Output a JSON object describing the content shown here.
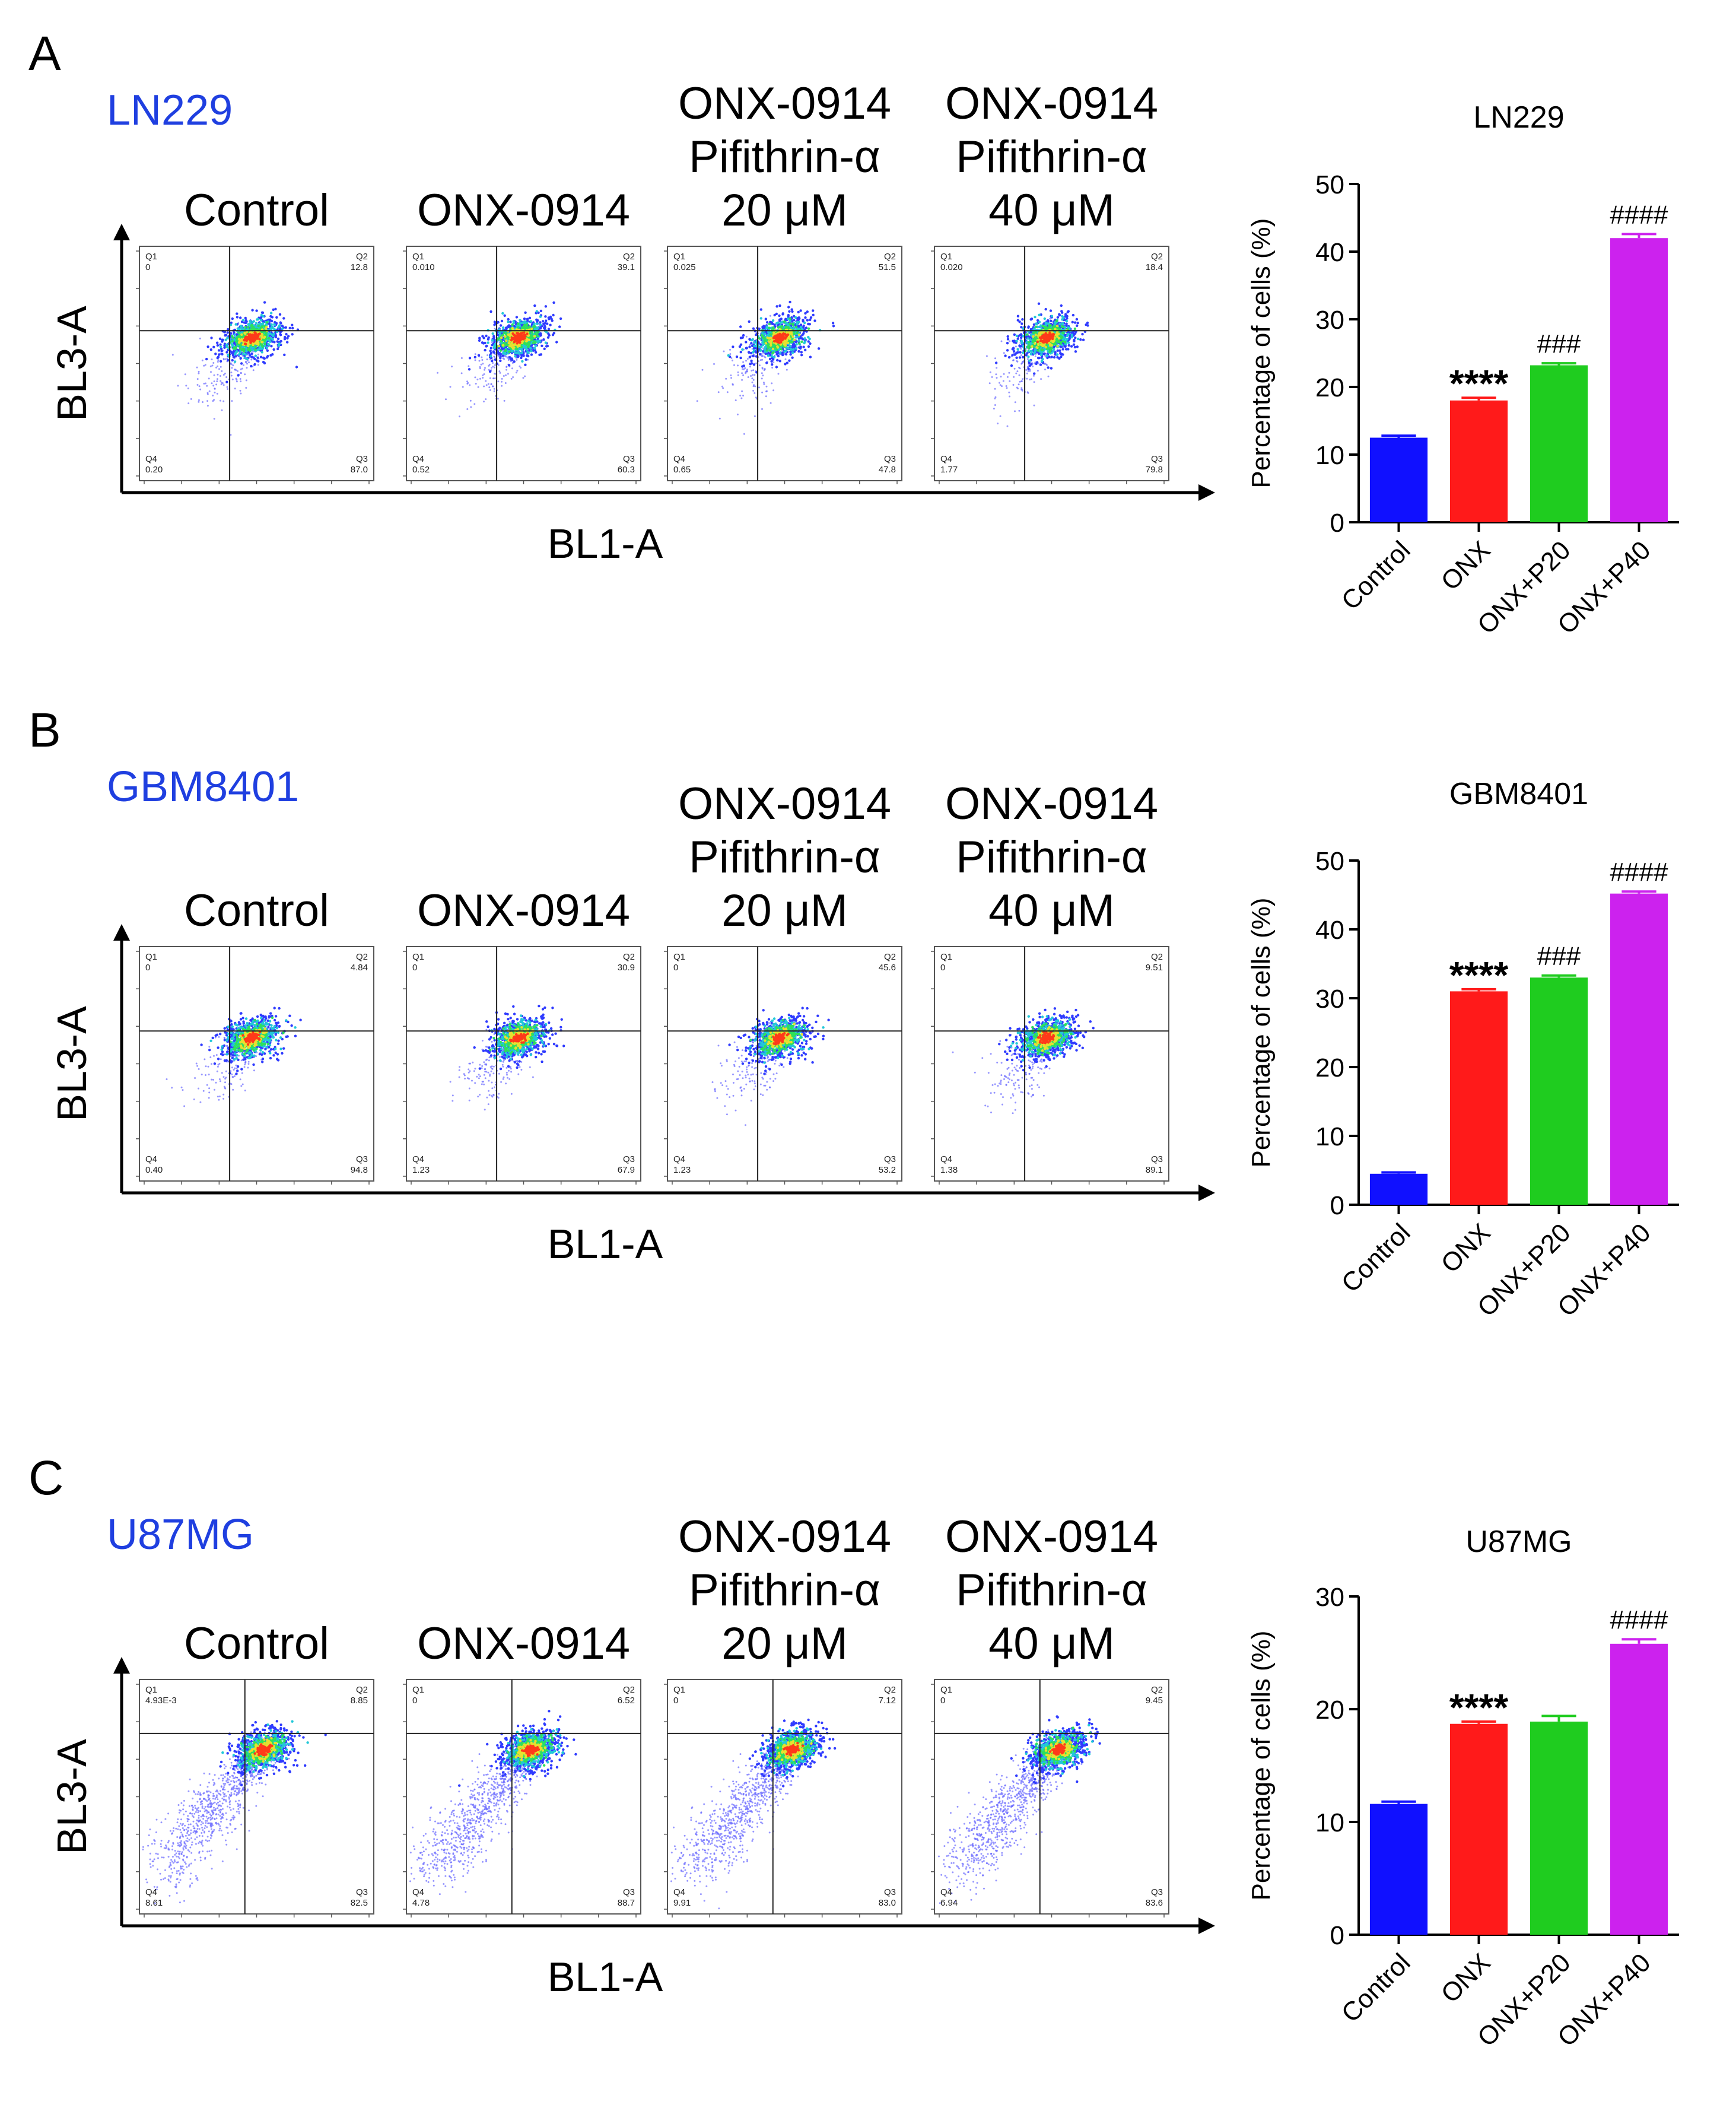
{
  "figure": {
    "panels": [
      {
        "letter": "A",
        "cell_line": "LN229",
        "cell_line_color": "#1f3fe0",
        "conditions": [
          {
            "lines": [
              "Control"
            ]
          },
          {
            "lines": [
              "ONX-0914"
            ]
          },
          {
            "lines": [
              "ONX-0914",
              "Pifithrin-α",
              "20 μM"
            ]
          },
          {
            "lines": [
              "ONX-0914",
              "Pifithrin-α",
              "40 μM"
            ]
          }
        ],
        "flow_y_label": "BL3-A",
        "flow_x_label": "BL1-A",
        "flow_plots": [
          {
            "q1_name": "Q1",
            "q1": "0",
            "q2_name": "Q2",
            "q2": "12.8",
            "q3_name": "Q3",
            "q3": "87.0",
            "q4_name": "Q4",
            "q4": "0.20"
          },
          {
            "q1_name": "Q1",
            "q1": "0.010",
            "q2_name": "Q2",
            "q2": "39.1",
            "q3_name": "Q3",
            "q3": "60.3",
            "q4_name": "Q4",
            "q4": "0.52"
          },
          {
            "q1_name": "Q1",
            "q1": "0.025",
            "q2_name": "Q2",
            "q2": "51.5",
            "q3_name": "Q3",
            "q3": "47.8",
            "q4_name": "Q4",
            "q4": "0.65"
          },
          {
            "q1_name": "Q1",
            "q1": "0.020",
            "q2_name": "Q2",
            "q2": "18.4",
            "q3_name": "Q3",
            "q3": "79.8",
            "q4_name": "Q4",
            "q4": "1.77"
          }
        ]
      },
      {
        "letter": "B",
        "cell_line": "GBM8401",
        "cell_line_color": "#1f3fe0",
        "conditions": [
          {
            "lines": [
              "Control"
            ]
          },
          {
            "lines": [
              "ONX-0914"
            ]
          },
          {
            "lines": [
              "ONX-0914",
              "Pifithrin-α",
              "20 μM"
            ]
          },
          {
            "lines": [
              "ONX-0914",
              "Pifithrin-α",
              "40 μM"
            ]
          }
        ],
        "flow_y_label": "BL3-A",
        "flow_x_label": "BL1-A",
        "flow_plots": [
          {
            "q1_name": "Q1",
            "q1": "0",
            "q2_name": "Q2",
            "q2": "4.84",
            "q3_name": "Q3",
            "q3": "94.8",
            "q4_name": "Q4",
            "q4": "0.40"
          },
          {
            "q1_name": "Q1",
            "q1": "0",
            "q2_name": "Q2",
            "q2": "30.9",
            "q3_name": "Q3",
            "q3": "67.9",
            "q4_name": "Q4",
            "q4": "1.23"
          },
          {
            "q1_name": "Q1",
            "q1": "0",
            "q2_name": "Q2",
            "q2": "45.6",
            "q3_name": "Q3",
            "q3": "53.2",
            "q4_name": "Q4",
            "q4": "1.23"
          },
          {
            "q1_name": "Q1",
            "q1": "0",
            "q2_name": "Q2",
            "q2": "9.51",
            "q3_name": "Q3",
            "q3": "89.1",
            "q4_name": "Q4",
            "q4": "1.38"
          }
        ]
      },
      {
        "letter": "C",
        "cell_line": "U87MG",
        "cell_line_color": "#1f3fe0",
        "conditions": [
          {
            "lines": [
              "Control"
            ]
          },
          {
            "lines": [
              "ONX-0914"
            ]
          },
          {
            "lines": [
              "ONX-0914",
              "Pifithrin-α",
              "20 μM"
            ]
          },
          {
            "lines": [
              "ONX-0914",
              "Pifithrin-α",
              "40 μM"
            ]
          }
        ],
        "flow_y_label": "BL3-A",
        "flow_x_label": "BL1-A",
        "flow_plots": [
          {
            "q1_name": "Q1",
            "q1": "4.93E-3",
            "q2_name": "Q2",
            "q2": "8.85",
            "q3_name": "Q3",
            "q3": "82.5",
            "q4_name": "Q4",
            "q4": "8.61"
          },
          {
            "q1_name": "Q1",
            "q1": "0",
            "q2_name": "Q2",
            "q2": "6.52",
            "q3_name": "Q3",
            "q3": "88.7",
            "q4_name": "Q4",
            "q4": "4.78"
          },
          {
            "q1_name": "Q1",
            "q1": "0",
            "q2_name": "Q2",
            "q2": "7.12",
            "q3_name": "Q3",
            "q3": "83.0",
            "q4_name": "Q4",
            "q4": "9.91"
          },
          {
            "q1_name": "Q1",
            "q1": "0",
            "q2_name": "Q2",
            "q2": "9.45",
            "q3_name": "Q3",
            "q3": "83.6",
            "q4_name": "Q4",
            "q4": "6.94"
          }
        ]
      }
    ]
  },
  "chart_data": [
    {
      "type": "bar",
      "title": "LN229",
      "categories": [
        "Control",
        "ONX",
        "ONX+P20",
        "ONX+P40"
      ],
      "values": [
        12.5,
        18.0,
        23.2,
        42.0
      ],
      "errors": [
        0.3,
        0.4,
        0.3,
        0.6
      ],
      "colors": [
        "#1010ff",
        "#ff1a1a",
        "#1fcc1f",
        "#cc22ee"
      ],
      "annotations": [
        "",
        "****",
        "###",
        "####"
      ],
      "ylabel": "Percentage of cells (%)",
      "ylim": [
        0,
        50
      ],
      "yticks": [
        "0",
        "10",
        "20",
        "30",
        "40",
        "50"
      ]
    },
    {
      "type": "bar",
      "title": "GBM8401",
      "categories": [
        "Control",
        "ONX",
        "ONX+P20",
        "ONX+P40"
      ],
      "values": [
        4.5,
        31.0,
        33.0,
        45.2
      ],
      "errors": [
        0.2,
        0.3,
        0.3,
        0.3
      ],
      "colors": [
        "#1010ff",
        "#ff1a1a",
        "#1fcc1f",
        "#cc22ee"
      ],
      "annotations": [
        "",
        "****",
        "###",
        "####"
      ],
      "ylabel": "Percentage of cells (%)",
      "ylim": [
        0,
        50
      ],
      "yticks": [
        "0",
        "10",
        "20",
        "30",
        "40",
        "50"
      ]
    },
    {
      "type": "bar",
      "title": "U87MG",
      "categories": [
        "Control",
        "ONX",
        "ONX+P20",
        "ONX+P40"
      ],
      "values": [
        11.6,
        18.7,
        18.9,
        25.8
      ],
      "errors": [
        0.2,
        0.2,
        0.5,
        0.4
      ],
      "colors": [
        "#1010ff",
        "#ff1a1a",
        "#1fcc1f",
        "#cc22ee"
      ],
      "annotations": [
        "",
        "****",
        "",
        "####"
      ],
      "ylabel": "Percentage of cells (%)",
      "ylim": [
        0,
        30
      ],
      "yticks": [
        "0",
        "10",
        "20",
        "30"
      ]
    }
  ]
}
